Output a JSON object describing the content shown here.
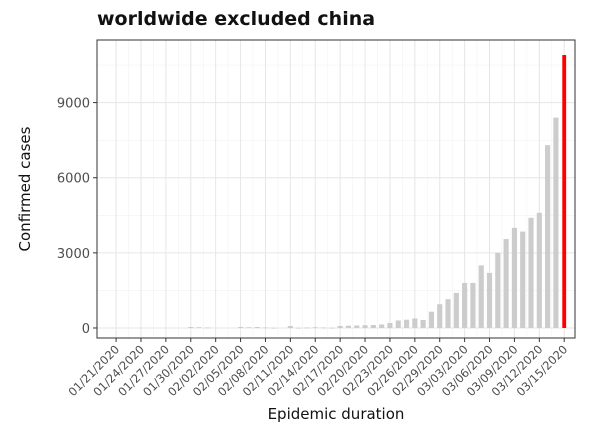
{
  "chart_data": {
    "type": "bar",
    "title": "worldwide excluded china",
    "xlabel": "Epidemic duration",
    "ylabel": "Confirmed cases",
    "x_start_date": "01/21/2020",
    "xtick_labels": [
      "01/21/2020",
      "01/24/2020",
      "01/27/2020",
      "01/30/2020",
      "02/02/2020",
      "02/05/2020",
      "02/08/2020",
      "02/11/2020",
      "02/14/2020",
      "02/17/2020",
      "02/20/2020",
      "02/23/2020",
      "02/26/2020",
      "02/29/2020",
      "03/03/2020",
      "03/06/2020",
      "03/09/2020",
      "03/12/2020",
      "03/15/2020"
    ],
    "yticks": [
      0,
      3000,
      6000,
      9000
    ],
    "ylim": [
      -400,
      11500
    ],
    "grid": true,
    "bar_color": "#cccccc",
    "highlight_color": "#ff0000",
    "categories": [
      "01/21/2020",
      "01/22/2020",
      "01/23/2020",
      "01/24/2020",
      "01/25/2020",
      "01/26/2020",
      "01/27/2020",
      "01/28/2020",
      "01/29/2020",
      "01/30/2020",
      "01/31/2020",
      "02/01/2020",
      "02/02/2020",
      "02/03/2020",
      "02/04/2020",
      "02/05/2020",
      "02/06/2020",
      "02/07/2020",
      "02/08/2020",
      "02/09/2020",
      "02/10/2020",
      "02/11/2020",
      "02/12/2020",
      "02/13/2020",
      "02/14/2020",
      "02/15/2020",
      "02/16/2020",
      "02/17/2020",
      "02/18/2020",
      "02/19/2020",
      "02/20/2020",
      "02/21/2020",
      "02/22/2020",
      "02/23/2020",
      "02/24/2020",
      "02/25/2020",
      "02/26/2020",
      "02/27/2020",
      "02/28/2020",
      "02/29/2020",
      "03/01/2020",
      "03/02/2020",
      "03/03/2020",
      "03/04/2020",
      "03/05/2020",
      "03/06/2020",
      "03/07/2020",
      "03/08/2020",
      "03/09/2020",
      "03/10/2020",
      "03/11/2020",
      "03/12/2020",
      "03/13/2020",
      "03/14/2020",
      "03/15/2020"
    ],
    "values": [
      0,
      0,
      0,
      0,
      0,
      0,
      0,
      0,
      0,
      40,
      30,
      20,
      0,
      0,
      0,
      40,
      30,
      40,
      20,
      10,
      0,
      80,
      10,
      20,
      30,
      20,
      10,
      80,
      90,
      100,
      110,
      120,
      140,
      200,
      300,
      330,
      380,
      320,
      650,
      950,
      1150,
      1400,
      1800,
      1800,
      2500,
      2200,
      3000,
      3550,
      4000,
      3850,
      4400,
      4600,
      7300,
      8400,
      10900
    ],
    "highlight_index": 54
  }
}
